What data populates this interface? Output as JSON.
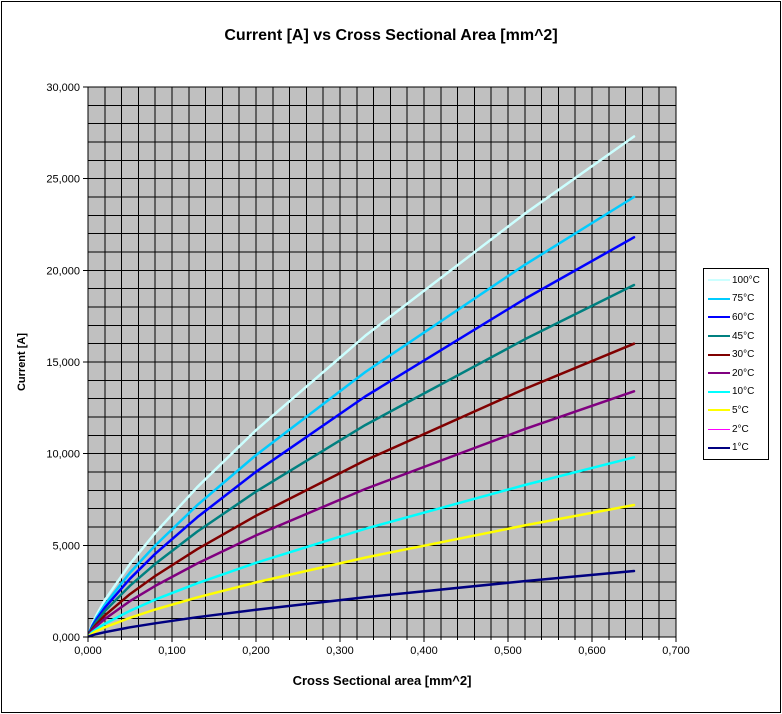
{
  "chart_data": {
    "type": "line",
    "title": "Current [A] vs Cross Sectional Area [mm^2]",
    "xlabel": "Cross Sectional area [mm^2]",
    "ylabel": "Current [A]",
    "xlim": [
      0,
      0.7
    ],
    "ylim": [
      0,
      30000
    ],
    "grid": "minor-both",
    "x_minor_unit": 0.02,
    "y_minor_unit": 1000,
    "plot_bg_color": "#C0C0C0",
    "grid_color": "#000000",
    "legend_position": "right",
    "x_ticks": [
      {
        "value": 0.0,
        "label": "0,000"
      },
      {
        "value": 0.1,
        "label": "0,100"
      },
      {
        "value": 0.2,
        "label": "0,200"
      },
      {
        "value": 0.3,
        "label": "0,300"
      },
      {
        "value": 0.4,
        "label": "0,400"
      },
      {
        "value": 0.5,
        "label": "0,500"
      },
      {
        "value": 0.6,
        "label": "0,600"
      },
      {
        "value": 0.7,
        "label": "0,700"
      }
    ],
    "y_ticks": [
      {
        "value": 0,
        "label": "0,000"
      },
      {
        "value": 5000,
        "label": "5,000"
      },
      {
        "value": 10000,
        "label": "10,000"
      },
      {
        "value": 15000,
        "label": "15,000"
      },
      {
        "value": 20000,
        "label": "20,000"
      },
      {
        "value": 25000,
        "label": "25,000"
      },
      {
        "value": 30000,
        "label": "30,000"
      }
    ],
    "x": [
      0.001,
      0.005,
      0.01,
      0.02,
      0.05,
      0.08,
      0.13,
      0.2,
      0.33,
      0.52,
      0.65
    ],
    "series": [
      {
        "name": "100°C",
        "color": "#CCFFFF",
        "width": 2.5,
        "values": [
          212,
          710,
          1190,
          2010,
          3990,
          5680,
          8170,
          11280,
          16430,
          23090,
          27300
        ]
      },
      {
        "name": "75°C",
        "color": "#00CCFF",
        "width": 2.5,
        "values": [
          186,
          620,
          1050,
          1760,
          3510,
          4990,
          7190,
          9920,
          14450,
          20300,
          24000
        ]
      },
      {
        "name": "60°C",
        "color": "#0000FF",
        "width": 2.5,
        "values": [
          169,
          570,
          950,
          1600,
          3180,
          4540,
          6530,
          9010,
          13120,
          18440,
          21800
        ]
      },
      {
        "name": "45°C",
        "color": "#008080",
        "width": 2.5,
        "values": [
          149,
          500,
          840,
          1410,
          2800,
          3990,
          5750,
          7930,
          11560,
          16240,
          19200
        ]
      },
      {
        "name": "30°C",
        "color": "#800000",
        "width": 2.5,
        "values": [
          124,
          420,
          700,
          1180,
          2340,
          3330,
          4790,
          6610,
          9630,
          13530,
          16000
        ]
      },
      {
        "name": "20°C",
        "color": "#800080",
        "width": 2.5,
        "values": [
          104,
          350,
          590,
          980,
          1960,
          2790,
          4010,
          5540,
          8070,
          11340,
          13400
        ]
      },
      {
        "name": "10°C",
        "color": "#00FFFF",
        "width": 2.5,
        "values": [
          76,
          260,
          430,
          720,
          1430,
          2040,
          2930,
          4050,
          5900,
          8290,
          9800
        ]
      },
      {
        "name": "5°C",
        "color": "#FFFF00",
        "width": 2.5,
        "values": [
          56,
          190,
          320,
          530,
          1050,
          1500,
          2160,
          2980,
          4330,
          6090,
          7200
        ]
      },
      {
        "name": "2°C",
        "color": "#FF00FF",
        "width": 1,
        "values": [
          28,
          94,
          160,
          260,
          530,
          750,
          1080,
          1490,
          2170,
          3050,
          3600
        ]
      },
      {
        "name": "1°C",
        "color": "#000080",
        "width": 2.5,
        "values": [
          28,
          94,
          160,
          260,
          530,
          750,
          1080,
          1490,
          2170,
          3050,
          3600
        ]
      }
    ]
  }
}
